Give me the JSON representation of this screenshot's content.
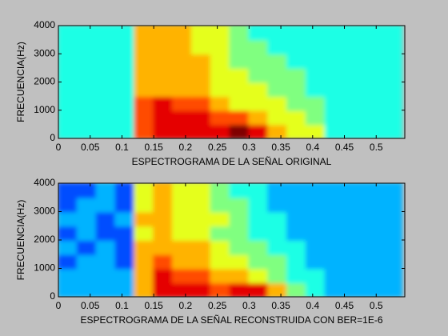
{
  "chart_data": [
    {
      "type": "heatmap",
      "xlabel": "ESPECTROGRAMA DE LA SEÑAL ORIGINAL",
      "ylabel": "FRECUENCIA(Hz)",
      "xlim": [
        0,
        0.545
      ],
      "ylim": [
        0,
        4000
      ],
      "xticks": [
        0,
        0.05,
        0.1,
        0.15,
        0.2,
        0.25,
        0.3,
        0.35,
        0.4,
        0.45,
        0.5
      ],
      "yticks": [
        0,
        1000,
        2000,
        3000,
        4000
      ],
      "x": [
        0.015,
        0.045,
        0.075,
        0.105,
        0.135,
        0.165,
        0.195,
        0.225,
        0.255,
        0.285,
        0.315,
        0.345,
        0.375,
        0.405,
        0.435,
        0.465,
        0.495,
        0.525
      ],
      "y": [
        250,
        750,
        1250,
        1750,
        2250,
        2750,
        3250,
        3750
      ],
      "colormap": "jet",
      "clim": [
        0,
        10
      ],
      "z": [
        [
          4,
          4,
          4,
          4,
          8,
          9,
          9,
          9,
          9,
          10,
          9,
          7,
          6,
          6,
          4,
          4,
          4,
          4
        ],
        [
          4,
          4,
          4,
          4,
          8,
          9,
          9,
          9,
          8,
          8,
          7,
          6,
          6,
          5,
          4,
          4,
          4,
          4
        ],
        [
          4,
          4,
          4,
          4,
          8,
          9,
          8,
          8,
          7,
          6,
          6,
          6,
          5,
          5,
          4,
          4,
          4,
          4
        ],
        [
          4,
          4,
          4,
          4,
          7,
          7,
          7,
          7,
          6,
          6,
          6,
          5,
          5,
          4,
          4,
          4,
          4,
          4
        ],
        [
          4,
          4,
          4,
          4,
          7,
          7,
          7,
          7,
          6,
          6,
          5,
          5,
          5,
          4,
          4,
          4,
          4,
          4
        ],
        [
          4,
          4,
          4,
          4,
          7,
          7,
          7,
          7,
          6,
          5,
          5,
          5,
          4,
          4,
          4,
          4,
          4,
          4
        ],
        [
          4,
          4,
          4,
          4,
          7,
          7,
          7,
          6,
          6,
          5,
          5,
          4,
          4,
          4,
          4,
          4,
          4,
          4
        ],
        [
          4,
          4,
          4,
          4,
          7,
          7,
          7,
          6,
          6,
          5,
          4,
          4,
          4,
          4,
          4,
          4,
          4,
          4
        ]
      ]
    },
    {
      "type": "heatmap",
      "xlabel": "ESPECTROGRAMA DE LA SEÑAL RECONSTRUIDA CON BER=1E-6",
      "ylabel": "FRECUENCIA(Hz)",
      "xlim": [
        0,
        0.545
      ],
      "ylim": [
        0,
        4000
      ],
      "xticks": [
        0,
        0.05,
        0.1,
        0.15,
        0.2,
        0.25,
        0.3,
        0.35,
        0.4,
        0.45,
        0.5
      ],
      "yticks": [
        0,
        1000,
        2000,
        3000,
        4000
      ],
      "x": [
        0.015,
        0.045,
        0.075,
        0.105,
        0.135,
        0.165,
        0.195,
        0.225,
        0.255,
        0.285,
        0.315,
        0.345,
        0.375,
        0.405,
        0.435,
        0.465,
        0.495,
        0.525
      ],
      "y": [
        250,
        750,
        1250,
        1750,
        2250,
        2750,
        3250,
        3750
      ],
      "colormap": "jet",
      "clim": [
        0,
        10
      ],
      "z": [
        [
          3,
          3,
          3,
          3,
          7,
          9,
          9,
          9,
          8,
          9,
          9,
          7,
          5,
          4,
          3,
          3,
          3,
          3
        ],
        [
          3,
          3,
          3,
          3,
          7,
          9,
          8,
          8,
          7,
          7,
          6,
          5,
          4,
          4,
          3,
          3,
          3,
          3
        ],
        [
          2,
          3,
          3,
          2,
          7,
          8,
          7,
          7,
          6,
          6,
          5,
          5,
          4,
          3,
          3,
          3,
          3,
          3
        ],
        [
          3,
          2,
          3,
          2,
          7,
          7,
          7,
          7,
          6,
          5,
          5,
          4,
          4,
          3,
          3,
          3,
          3,
          3
        ],
        [
          2,
          3,
          2,
          2,
          6,
          7,
          6,
          6,
          5,
          5,
          4,
          4,
          3,
          3,
          3,
          3,
          3,
          3
        ],
        [
          3,
          3,
          2,
          3,
          7,
          7,
          6,
          6,
          6,
          5,
          4,
          4,
          3,
          3,
          3,
          3,
          3,
          3
        ],
        [
          2,
          3,
          3,
          2,
          6,
          7,
          6,
          6,
          5,
          5,
          4,
          3,
          3,
          3,
          3,
          3,
          3,
          3
        ],
        [
          2,
          2,
          3,
          2,
          6,
          7,
          6,
          6,
          5,
          4,
          4,
          3,
          3,
          3,
          3,
          3,
          3,
          3
        ]
      ]
    }
  ]
}
